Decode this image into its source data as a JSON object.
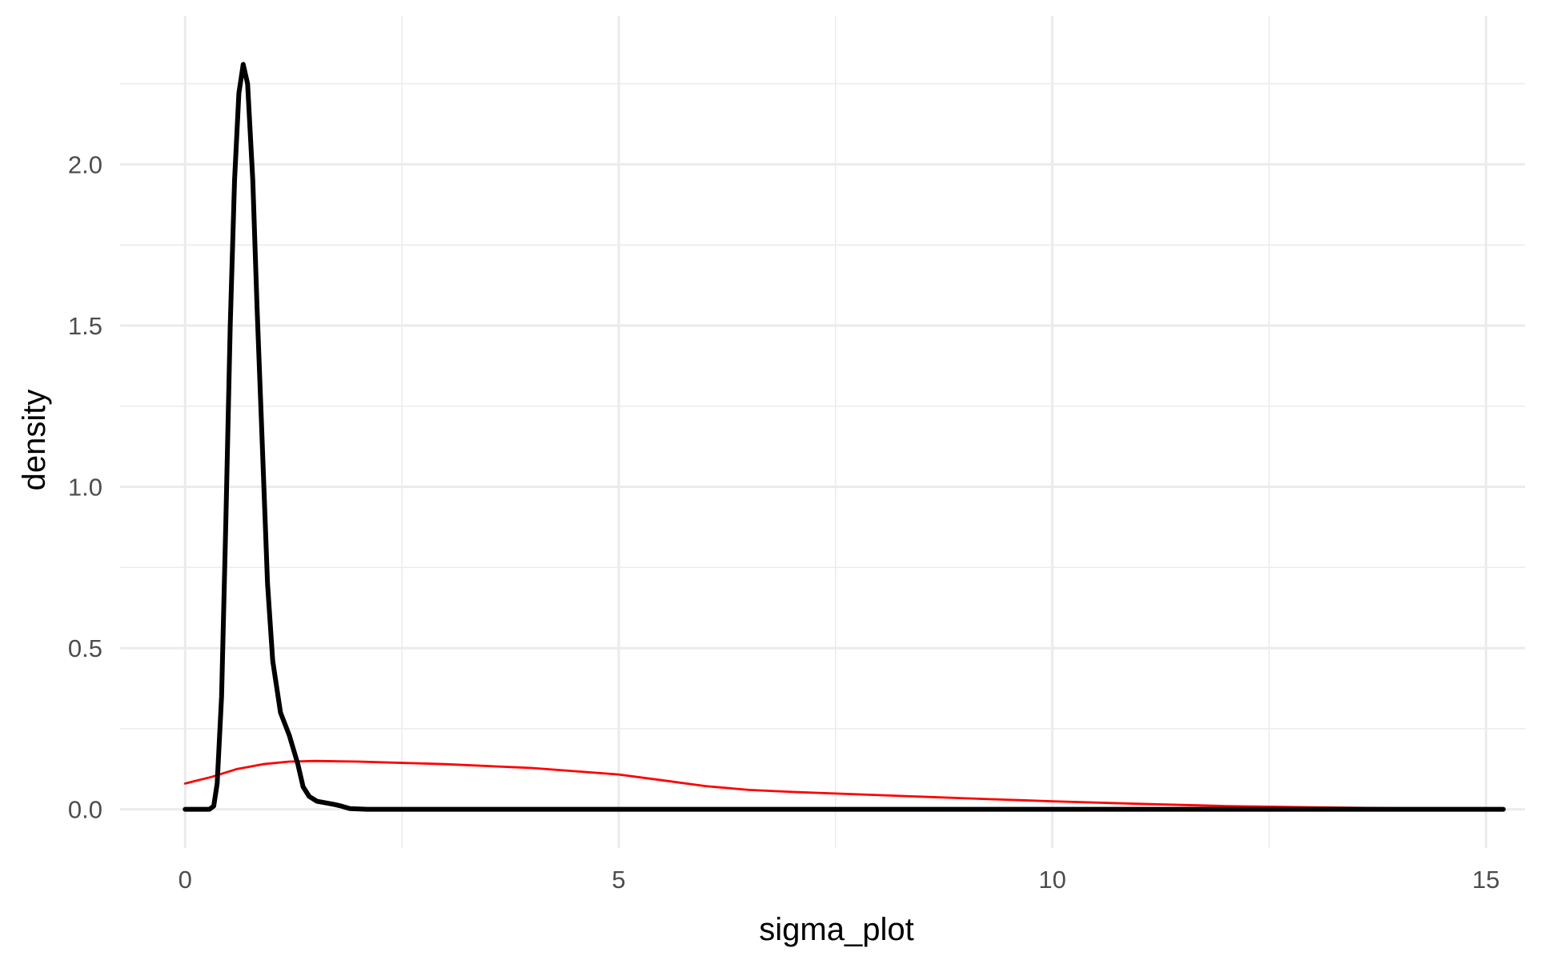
{
  "chart_data": {
    "type": "line",
    "title": "",
    "xlabel": "sigma_plot",
    "ylabel": "density",
    "xlim": [
      -0.75,
      15.45
    ],
    "ylim": [
      -0.12,
      2.46
    ],
    "x_ticks": [
      0,
      5,
      10,
      15
    ],
    "x_tick_labels": [
      "0",
      "5",
      "10",
      "15"
    ],
    "y_ticks": [
      0,
      0.5,
      1,
      1.5,
      2
    ],
    "y_tick_labels": [
      "0.0",
      "0.5",
      "1.0",
      "1.5",
      "2.0"
    ],
    "x_minor_ticks": [
      2.5,
      7.5,
      12.5
    ],
    "y_minor_ticks": [
      0.25,
      0.75,
      1.25,
      1.75,
      2.25
    ],
    "grid": true,
    "legend": "none",
    "series": [
      {
        "color": "#000000",
        "x": [
          0,
          0.28,
          0.33,
          0.37,
          0.42,
          0.47,
          0.52,
          0.57,
          0.62,
          0.67,
          0.72,
          0.78,
          0.83,
          0.88,
          0.95,
          1.01,
          1.1,
          1.2,
          1.3,
          1.36,
          1.43,
          1.52,
          1.62,
          1.72,
          1.8,
          1.9,
          2.1,
          4,
          8,
          12,
          15.2
        ],
        "y": [
          0,
          0,
          0.01,
          0.08,
          0.35,
          0.9,
          1.5,
          1.95,
          2.22,
          2.31,
          2.25,
          1.95,
          1.55,
          1.2,
          0.7,
          0.46,
          0.3,
          0.23,
          0.14,
          0.07,
          0.04,
          0.025,
          0.02,
          0.015,
          0.01,
          0.002,
          0,
          0,
          0,
          0,
          0
        ]
      },
      {
        "color": "#ff0000",
        "x": [
          0,
          0.3,
          0.6,
          0.9,
          1.2,
          1.5,
          2,
          3,
          4,
          5,
          5.5,
          6,
          6.5,
          7,
          8,
          9,
          10,
          11,
          12,
          13,
          14,
          15.2
        ],
        "y": [
          0.08,
          0.1,
          0.125,
          0.14,
          0.148,
          0.15,
          0.148,
          0.14,
          0.128,
          0.108,
          0.09,
          0.072,
          0.06,
          0.054,
          0.044,
          0.034,
          0.025,
          0.017,
          0.01,
          0.006,
          0.003,
          0.002
        ]
      }
    ]
  }
}
